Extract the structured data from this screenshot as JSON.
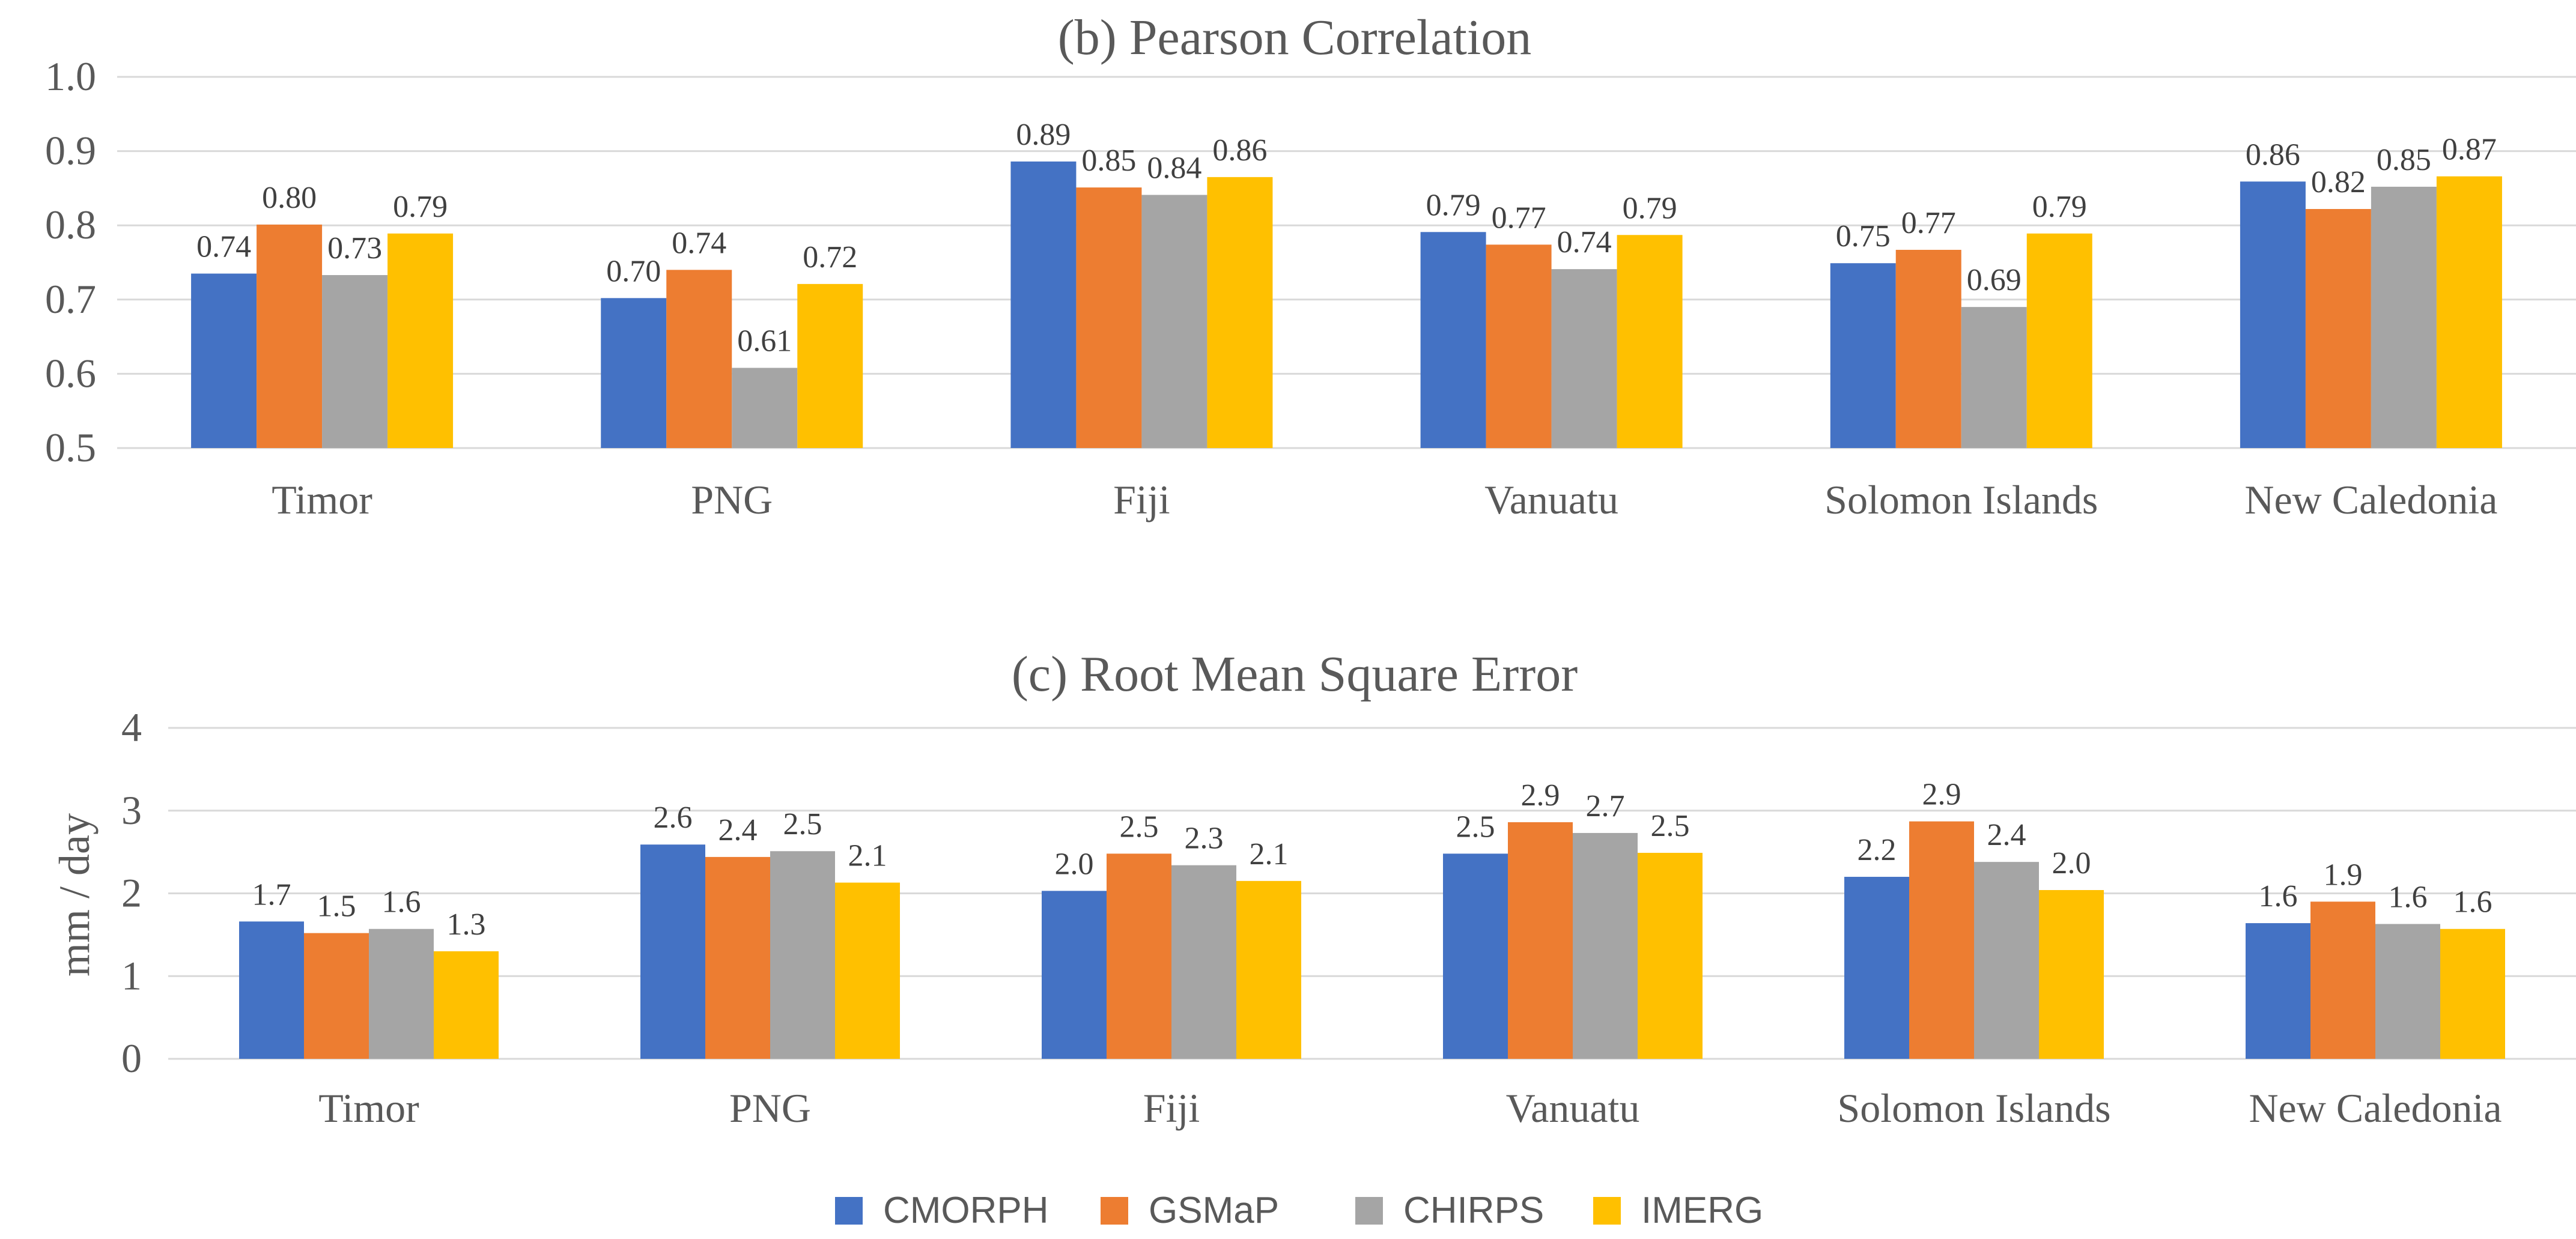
{
  "colors": {
    "CMORPH": "#4472C4",
    "GSMaP": "#ED7D31",
    "CHIRPS": "#A5A5A5",
    "IMERG": "#FFC000"
  },
  "legend": {
    "entries": [
      "CMORPH",
      "GSMaP",
      "CHIRPS",
      "IMERG"
    ]
  },
  "chart_data": [
    {
      "type": "bar",
      "title": "(b) Pearson Correlation",
      "xlabel": "",
      "ylabel": "",
      "ylim": [
        0.5,
        1.0
      ],
      "yticks": [
        0.5,
        0.6,
        0.7,
        0.8,
        0.9,
        1.0
      ],
      "ytick_labels": [
        "0.5",
        "0.6",
        "0.7",
        "0.8",
        "0.9",
        "1.0"
      ],
      "grid": true,
      "categories": [
        "Timor",
        "PNG",
        "Fiji",
        "Vanuatu",
        "Solomon Islands",
        "New Caledonia"
      ],
      "series": [
        {
          "name": "CMORPH",
          "values": [
            0.735,
            0.702,
            0.886,
            0.791,
            0.749,
            0.859
          ],
          "labels": [
            "0.74",
            "0.70",
            "0.89",
            "0.79",
            "0.75",
            "0.86"
          ]
        },
        {
          "name": "GSMaP",
          "values": [
            0.801,
            0.74,
            0.851,
            0.774,
            0.767,
            0.822
          ],
          "labels": [
            "0.80",
            "0.74",
            "0.85",
            "0.77",
            "0.77",
            "0.82"
          ]
        },
        {
          "name": "CHIRPS",
          "values": [
            0.733,
            0.608,
            0.841,
            0.741,
            0.69,
            0.852
          ],
          "labels": [
            "0.73",
            "0.61",
            "0.84",
            "0.74",
            "0.69",
            "0.85"
          ]
        },
        {
          "name": "IMERG",
          "values": [
            0.789,
            0.721,
            0.865,
            0.787,
            0.789,
            0.866
          ],
          "labels": [
            "0.79",
            "0.72",
            "0.86",
            "0.79",
            "0.79",
            "0.87"
          ]
        }
      ]
    },
    {
      "type": "bar",
      "title": "(c) Root Mean Square Error",
      "xlabel": "",
      "ylabel": "mm / day",
      "ylim": [
        0,
        4
      ],
      "yticks": [
        0,
        1,
        2,
        3,
        4
      ],
      "ytick_labels": [
        "0",
        "1",
        "2",
        "3",
        "4"
      ],
      "grid": true,
      "categories": [
        "Timor",
        "PNG",
        "Fiji",
        "Vanuatu",
        "Solomon Islands",
        "New Caledonia"
      ],
      "series": [
        {
          "name": "CMORPH",
          "values": [
            1.66,
            2.59,
            2.03,
            2.48,
            2.2,
            1.64
          ],
          "labels": [
            "1.7",
            "2.6",
            "2.0",
            "2.5",
            "2.2",
            "1.6"
          ]
        },
        {
          "name": "GSMaP",
          "values": [
            1.52,
            2.44,
            2.48,
            2.86,
            2.87,
            1.9
          ],
          "labels": [
            "1.5",
            "2.4",
            "2.5",
            "2.9",
            "2.9",
            "1.9"
          ]
        },
        {
          "name": "CHIRPS",
          "values": [
            1.57,
            2.51,
            2.34,
            2.73,
            2.38,
            1.63
          ],
          "labels": [
            "1.6",
            "2.5",
            "2.3",
            "2.7",
            "2.4",
            "1.6"
          ]
        },
        {
          "name": "IMERG",
          "values": [
            1.3,
            2.13,
            2.15,
            2.49,
            2.04,
            1.57
          ],
          "labels": [
            "1.3",
            "2.1",
            "2.1",
            "2.5",
            "2.0",
            "1.6"
          ]
        }
      ]
    }
  ]
}
